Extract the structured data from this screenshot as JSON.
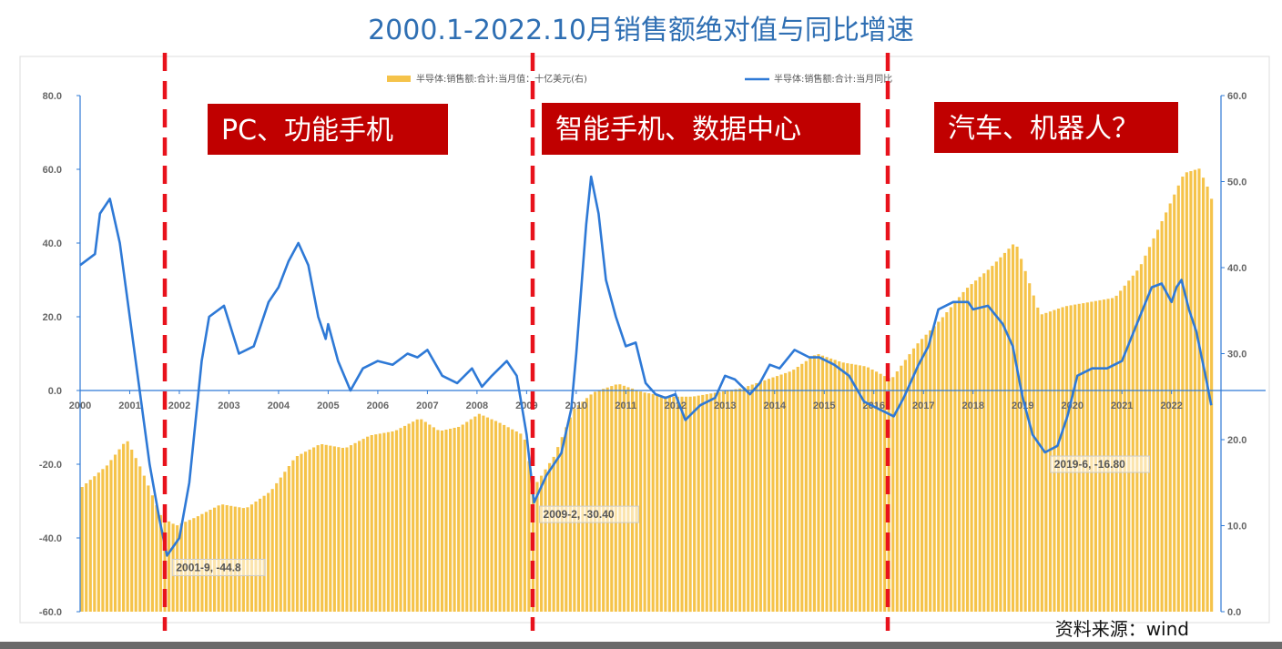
{
  "title": "2000.1-2022.10月销售额绝对值与同比增速",
  "source": "资料来源：wind",
  "eras": [
    "PC、功能手机",
    "智能手机、数据中心",
    "汽车、机器人？"
  ],
  "colors": {
    "bar": "#f5c34a",
    "line": "#2e79d6",
    "era_box": "#c00000",
    "divider": "#e8121c",
    "frame": "#dddddd"
  },
  "chart_data": {
    "type": "bar+line",
    "legend": [
      "半导体:销售额:合计:当月值：十亿美元(右)",
      "半导体:销售额:合计:当月同比"
    ],
    "legend_placement": "top",
    "x_ticks": [
      "2000",
      "2001",
      "2002",
      "2003",
      "2004",
      "2005",
      "2006",
      "2007",
      "2008",
      "2009",
      "2010",
      "2011",
      "2012",
      "2013",
      "2014",
      "2015",
      "2016",
      "2017",
      "2018",
      "2019",
      "2020",
      "2021",
      "2022"
    ],
    "y_left_ticks": [
      "80.0",
      "60.0",
      "40.0",
      "20.0",
      "0.0",
      "-20.0",
      "-40.0",
      "-60.0"
    ],
    "y_right_ticks": [
      "60.0",
      "50.0",
      "40.0",
      "30.0",
      "20.0",
      "10.0",
      "0.0"
    ],
    "ylim_left": [
      -60,
      80
    ],
    "ylim_right": [
      0,
      60
    ],
    "grid": false,
    "series": [
      {
        "name": "半导体:销售额:合计:当月值：十亿美元(右)",
        "axis": "right",
        "type": "bar",
        "points": [
          [
            2000.0,
            14.5
          ],
          [
            2000.5,
            17.0
          ],
          [
            2000.9,
            20.0
          ],
          [
            2001.2,
            16.5
          ],
          [
            2001.6,
            11.0
          ],
          [
            2001.9,
            10.0
          ],
          [
            2002.3,
            11.0
          ],
          [
            2002.8,
            12.5
          ],
          [
            2003.3,
            12.0
          ],
          [
            2003.8,
            14.0
          ],
          [
            2004.3,
            18.0
          ],
          [
            2004.8,
            19.5
          ],
          [
            2005.3,
            19.0
          ],
          [
            2005.8,
            20.5
          ],
          [
            2006.3,
            21.0
          ],
          [
            2006.8,
            22.5
          ],
          [
            2007.2,
            21.0
          ],
          [
            2007.6,
            21.5
          ],
          [
            2008.0,
            23.0
          ],
          [
            2008.4,
            22.0
          ],
          [
            2008.9,
            20.5
          ],
          [
            2009.1,
            14.5
          ],
          [
            2009.5,
            18.0
          ],
          [
            2009.9,
            23.5
          ],
          [
            2010.3,
            25.5
          ],
          [
            2010.8,
            26.5
          ],
          [
            2011.3,
            25.5
          ],
          [
            2011.8,
            25.0
          ],
          [
            2012.3,
            25.0
          ],
          [
            2012.8,
            25.5
          ],
          [
            2013.3,
            26.0
          ],
          [
            2013.8,
            27.0
          ],
          [
            2014.3,
            28.0
          ],
          [
            2014.8,
            30.0
          ],
          [
            2015.3,
            29.0
          ],
          [
            2015.8,
            28.5
          ],
          [
            2016.3,
            27.0
          ],
          [
            2016.8,
            31.0
          ],
          [
            2017.3,
            34.0
          ],
          [
            2017.8,
            37.5
          ],
          [
            2018.3,
            40.0
          ],
          [
            2018.8,
            43.0
          ],
          [
            2019.3,
            34.5
          ],
          [
            2019.8,
            35.5
          ],
          [
            2020.3,
            36.0
          ],
          [
            2020.8,
            36.5
          ],
          [
            2021.3,
            40.0
          ],
          [
            2021.8,
            46.0
          ],
          [
            2022.2,
            51.0
          ],
          [
            2022.5,
            51.5
          ],
          [
            2022.7,
            49.0
          ],
          [
            2022.8,
            47.0
          ]
        ]
      },
      {
        "name": "半导体:销售额:合计:当月同比",
        "axis": "left",
        "type": "line",
        "points": [
          [
            2000.0,
            34.0
          ],
          [
            2000.3,
            37.0
          ],
          [
            2000.4,
            48.0
          ],
          [
            2000.6,
            52.0
          ],
          [
            2000.8,
            40.0
          ],
          [
            2001.0,
            20.0
          ],
          [
            2001.2,
            0.0
          ],
          [
            2001.4,
            -20.0
          ],
          [
            2001.6,
            -35.0
          ],
          [
            2001.75,
            -44.8
          ],
          [
            2002.0,
            -40.0
          ],
          [
            2002.2,
            -25.0
          ],
          [
            2002.45,
            8.0
          ],
          [
            2002.6,
            20.0
          ],
          [
            2002.9,
            23.0
          ],
          [
            2003.2,
            10.0
          ],
          [
            2003.5,
            12.0
          ],
          [
            2003.8,
            24.0
          ],
          [
            2004.0,
            28.0
          ],
          [
            2004.2,
            35.0
          ],
          [
            2004.4,
            40.0
          ],
          [
            2004.6,
            34.0
          ],
          [
            2004.8,
            20.0
          ],
          [
            2004.95,
            14.0
          ],
          [
            2005.0,
            18.0
          ],
          [
            2005.2,
            8.0
          ],
          [
            2005.45,
            0.0
          ],
          [
            2005.7,
            6.0
          ],
          [
            2006.0,
            8.0
          ],
          [
            2006.3,
            7.0
          ],
          [
            2006.6,
            10.0
          ],
          [
            2006.8,
            9.0
          ],
          [
            2007.0,
            11.0
          ],
          [
            2007.3,
            4.0
          ],
          [
            2007.6,
            2.0
          ],
          [
            2007.9,
            6.0
          ],
          [
            2008.1,
            1.0
          ],
          [
            2008.3,
            4.0
          ],
          [
            2008.6,
            8.0
          ],
          [
            2008.8,
            4.0
          ],
          [
            2009.0,
            -12.0
          ],
          [
            2009.15,
            -30.4
          ],
          [
            2009.4,
            -23.0
          ],
          [
            2009.7,
            -17.0
          ],
          [
            2009.9,
            -5.0
          ],
          [
            2010.0,
            10.0
          ],
          [
            2010.2,
            45.0
          ],
          [
            2010.3,
            58.0
          ],
          [
            2010.45,
            48.0
          ],
          [
            2010.6,
            30.0
          ],
          [
            2010.8,
            20.0
          ],
          [
            2011.0,
            12.0
          ],
          [
            2011.2,
            13.0
          ],
          [
            2011.4,
            2.0
          ],
          [
            2011.6,
            -1.0
          ],
          [
            2011.8,
            -2.0
          ],
          [
            2012.0,
            -1.0
          ],
          [
            2012.2,
            -8.0
          ],
          [
            2012.5,
            -4.0
          ],
          [
            2012.8,
            -2.0
          ],
          [
            2013.0,
            4.0
          ],
          [
            2013.2,
            3.0
          ],
          [
            2013.5,
            -1.0
          ],
          [
            2013.7,
            2.0
          ],
          [
            2013.9,
            7.0
          ],
          [
            2014.1,
            6.0
          ],
          [
            2014.4,
            11.0
          ],
          [
            2014.7,
            9.0
          ],
          [
            2014.9,
            9.0
          ],
          [
            2015.2,
            7.0
          ],
          [
            2015.5,
            4.0
          ],
          [
            2015.8,
            -3.0
          ],
          [
            2016.1,
            -5.0
          ],
          [
            2016.4,
            -7.0
          ],
          [
            2016.6,
            -2.0
          ],
          [
            2016.9,
            7.0
          ],
          [
            2017.1,
            12.0
          ],
          [
            2017.3,
            22.0
          ],
          [
            2017.6,
            24.0
          ],
          [
            2017.9,
            24.0
          ],
          [
            2018.0,
            22.0
          ],
          [
            2018.3,
            23.0
          ],
          [
            2018.6,
            18.0
          ],
          [
            2018.8,
            12.0
          ],
          [
            2019.0,
            -2.0
          ],
          [
            2019.2,
            -12.0
          ],
          [
            2019.45,
            -16.8
          ],
          [
            2019.7,
            -15.0
          ],
          [
            2019.9,
            -7.0
          ],
          [
            2020.1,
            4.0
          ],
          [
            2020.4,
            6.0
          ],
          [
            2020.7,
            6.0
          ],
          [
            2021.0,
            8.0
          ],
          [
            2021.3,
            18.0
          ],
          [
            2021.6,
            28.0
          ],
          [
            2021.8,
            29.0
          ],
          [
            2022.0,
            24.0
          ],
          [
            2022.1,
            28.0
          ],
          [
            2022.2,
            30.0
          ],
          [
            2022.35,
            22.0
          ],
          [
            2022.5,
            16.0
          ],
          [
            2022.7,
            3.0
          ],
          [
            2022.8,
            -4.0
          ]
        ]
      }
    ],
    "annotations": [
      {
        "label": "2001-9, -44.8",
        "x": 2001.75,
        "y": -44.8
      },
      {
        "label": "2009-2, -30.40",
        "x": 2009.15,
        "y": -30.4
      },
      {
        "label": "2019-6, -16.80",
        "x": 2019.45,
        "y": -16.8
      }
    ]
  }
}
